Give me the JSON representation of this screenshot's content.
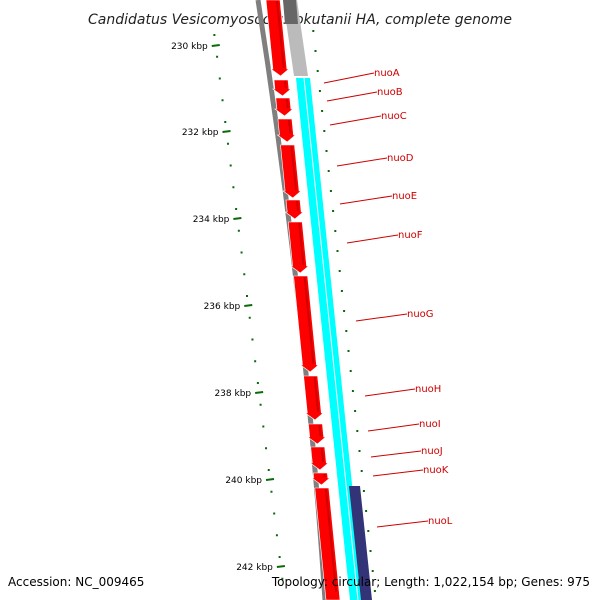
{
  "title": "Candidatus Vesicomyosocius okutanii HA, complete genome",
  "footer": {
    "accession": "Accession: NC_009465",
    "summary": "Topology: circular; Length: 1,022,154 bp; Genes: 975"
  },
  "ruler": {
    "labels": [
      "230 kbp",
      "232 kbp",
      "234 kbp",
      "236 kbp",
      "238 kbp",
      "240 kbp",
      "242 kbp"
    ]
  },
  "genes": [
    {
      "label": "nuoA"
    },
    {
      "label": "nuoB"
    },
    {
      "label": "nuoC"
    },
    {
      "label": "nuoD"
    },
    {
      "label": "nuoE"
    },
    {
      "label": "nuoF"
    },
    {
      "label": "nuoG"
    },
    {
      "label": "nuoH"
    },
    {
      "label": "nuoI"
    },
    {
      "label": "nuoJ"
    },
    {
      "label": "nuoK"
    },
    {
      "label": "nuoL"
    }
  ],
  "colors": {
    "cds": "#ff0000",
    "cds_dark": "#aa0000",
    "outer_ring": "#7f7f7f",
    "cyan_band": "#00ffff",
    "navy_band": "#333377",
    "gray_band": "#bbbbbb",
    "ruler_tick": "#0a6a0a",
    "label": "#cc0000"
  }
}
